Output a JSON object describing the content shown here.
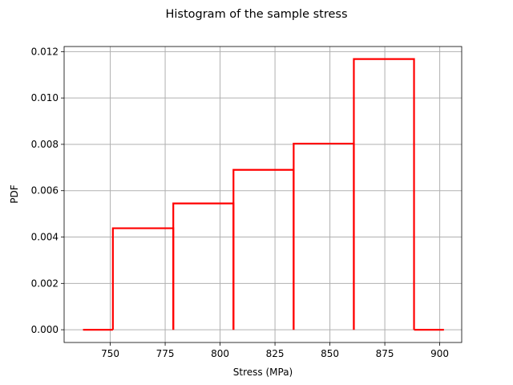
{
  "chart_data": {
    "type": "histogram",
    "title": "Histogram of the sample stress",
    "xlabel": "Stress (MPa)",
    "ylabel": "PDF",
    "xlim": [
      729,
      910
    ],
    "ylim": [
      -0.00055,
      0.01222
    ],
    "xticks": [
      750,
      775,
      800,
      825,
      850,
      875,
      900
    ],
    "xtick_labels": [
      "750",
      "775",
      "800",
      "825",
      "850",
      "875",
      "900"
    ],
    "yticks": [
      0.0,
      0.002,
      0.004,
      0.006,
      0.008,
      0.01,
      0.012
    ],
    "ytick_labels": [
      "0.000",
      "0.002",
      "0.004",
      "0.006",
      "0.008",
      "0.010",
      "0.012"
    ],
    "grid": true,
    "line_color": "#ff0000",
    "support_start": 737.6,
    "support_end": 901.9,
    "bins": [
      {
        "left": 751.2,
        "right": 778.7,
        "density": 0.00438
      },
      {
        "left": 778.7,
        "right": 806.1,
        "density": 0.00545
      },
      {
        "left": 806.1,
        "right": 833.5,
        "density": 0.0069
      },
      {
        "left": 833.5,
        "right": 860.9,
        "density": 0.00803
      },
      {
        "left": 860.9,
        "right": 888.3,
        "density": 0.01168
      }
    ]
  }
}
